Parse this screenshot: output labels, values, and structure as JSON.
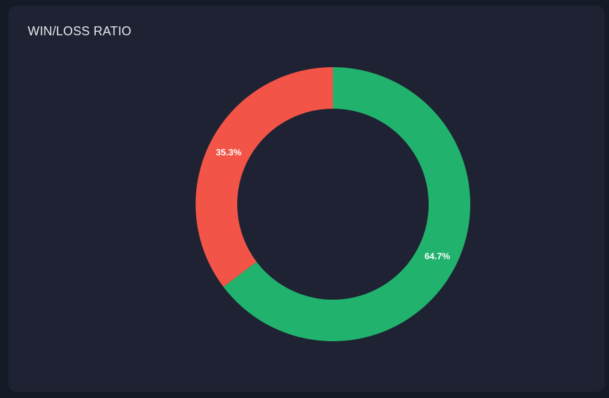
{
  "card": {
    "title": "WIN/LOSS RATIO"
  },
  "chart_data": {
    "type": "pie",
    "variant": "donut",
    "title": "WIN/LOSS RATIO",
    "slices": [
      {
        "value": 64.7,
        "label": "64.7%",
        "color": "#21b26d"
      },
      {
        "value": 35.3,
        "label": "35.3%",
        "color": "#f25447"
      }
    ],
    "start_angle_deg": 0,
    "direction": "clockwise",
    "legend": "none"
  }
}
